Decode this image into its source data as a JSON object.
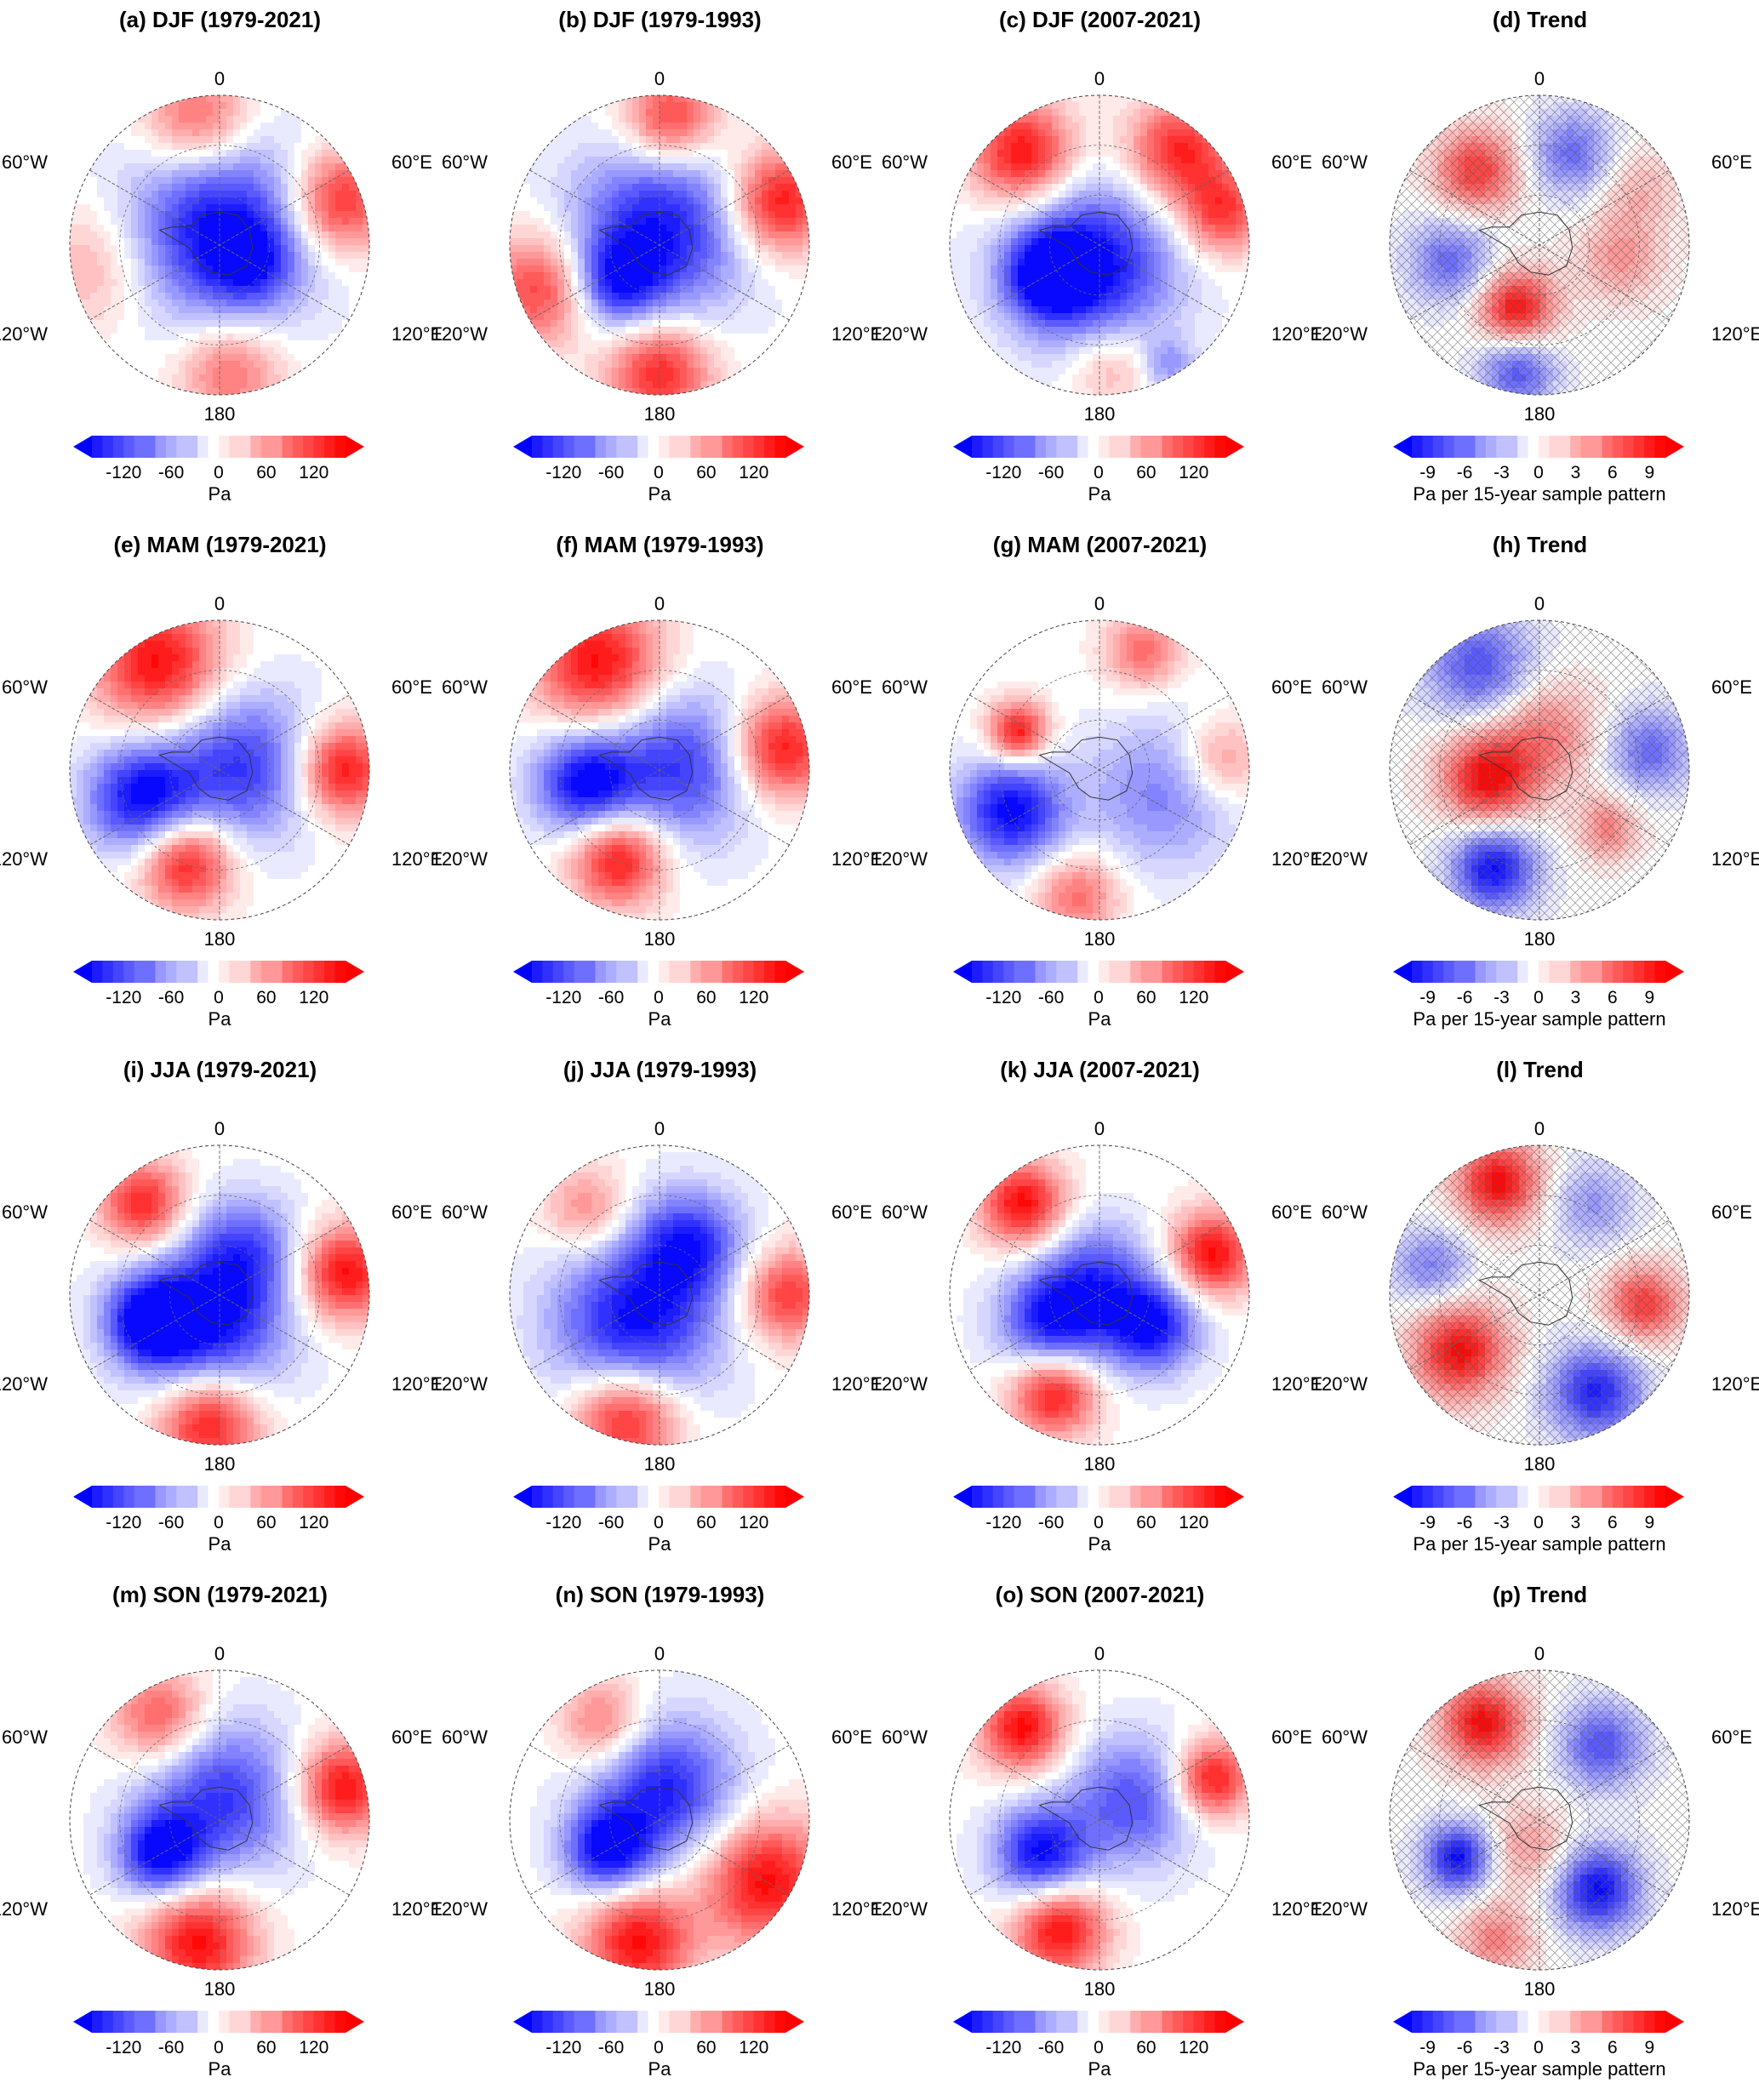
{
  "colors": {
    "neg_max": "#0000ff",
    "pos_max": "#ff0000",
    "neutral": "#ffffff",
    "coast": "#333333",
    "grid": "#666666"
  },
  "map_labels": {
    "top": "0",
    "left_upper": "60°W",
    "right_upper": "60°E",
    "left_lower": "120°W",
    "right_lower": "120°E",
    "bottom": "180"
  },
  "colorbars": {
    "mean": {
      "ticks": [
        "-120",
        "-60",
        "0",
        "60",
        "120"
      ],
      "unit": "Pa"
    },
    "trend": {
      "ticks": [
        "-9",
        "-6",
        "-3",
        "0",
        "3",
        "6",
        "9"
      ],
      "unit": "Pa per 15-year sample pattern"
    }
  },
  "panels": [
    {
      "title": "(a) DJF (1979-2021)",
      "kind": "mean",
      "blobs": [
        {
          "r": 0.1,
          "a": 0,
          "v": -1.0,
          "s": 0.42
        },
        {
          "r": 0.25,
          "a": 120,
          "v": -0.45,
          "s": 0.2
        },
        {
          "r": 0.85,
          "a": 70,
          "v": 0.9,
          "s": 0.24
        },
        {
          "r": 0.85,
          "a": -10,
          "v": 0.7,
          "s": 0.25
        },
        {
          "r": 0.85,
          "a": 175,
          "v": 0.6,
          "s": 0.24
        },
        {
          "r": 0.85,
          "a": 260,
          "v": 0.35,
          "s": 0.3
        }
      ]
    },
    {
      "title": "(b) DJF (1979-1993)",
      "kind": "mean",
      "blobs": [
        {
          "r": 0.1,
          "a": 0,
          "v": -0.95,
          "s": 0.4
        },
        {
          "r": 0.38,
          "a": 230,
          "v": -0.7,
          "s": 0.2
        },
        {
          "r": 0.85,
          "a": 70,
          "v": 1.0,
          "s": 0.24
        },
        {
          "r": 0.85,
          "a": 5,
          "v": 0.85,
          "s": 0.22
        },
        {
          "r": 0.85,
          "a": 180,
          "v": 0.9,
          "s": 0.24
        },
        {
          "r": 0.85,
          "a": 250,
          "v": 0.8,
          "s": 0.26
        }
      ]
    },
    {
      "title": "(c) DJF (2007-2021)",
      "kind": "mean",
      "blobs": [
        {
          "r": 0.15,
          "a": 200,
          "v": -1.0,
          "s": 0.38
        },
        {
          "r": 0.4,
          "a": 240,
          "v": -0.8,
          "s": 0.2
        },
        {
          "r": 0.8,
          "a": 320,
          "v": 1.0,
          "s": 0.24
        },
        {
          "r": 0.82,
          "a": 40,
          "v": 0.9,
          "s": 0.24
        },
        {
          "r": 0.85,
          "a": 75,
          "v": 0.8,
          "s": 0.2
        },
        {
          "r": 0.8,
          "a": 175,
          "v": 0.4,
          "s": 0.2
        },
        {
          "r": 0.92,
          "a": 150,
          "v": -0.4,
          "s": 0.12
        }
      ]
    },
    {
      "title": "(d) Trend",
      "kind": "trend",
      "hatch": true,
      "blobs": [
        {
          "r": 0.65,
          "a": 320,
          "v": 0.8,
          "s": 0.2
        },
        {
          "r": 0.65,
          "a": 20,
          "v": -0.6,
          "s": 0.2
        },
        {
          "r": 0.45,
          "a": 200,
          "v": 1.0,
          "s": 0.18
        },
        {
          "r": 0.85,
          "a": 190,
          "v": -0.7,
          "s": 0.18
        },
        {
          "r": 0.6,
          "a": 260,
          "v": -0.6,
          "s": 0.2
        },
        {
          "r": 0.55,
          "a": 100,
          "v": 0.4,
          "s": 0.2
        },
        {
          "r": 0.75,
          "a": 60,
          "v": 0.3,
          "s": 0.2
        }
      ]
    },
    {
      "title": "(e) MAM (1979-2021)",
      "kind": "mean",
      "blobs": [
        {
          "r": 0.15,
          "a": 80,
          "v": -0.8,
          "s": 0.35
        },
        {
          "r": 0.55,
          "a": 250,
          "v": -1.0,
          "s": 0.26
        },
        {
          "r": 0.82,
          "a": 330,
          "v": 1.0,
          "s": 0.3
        },
        {
          "r": 0.82,
          "a": 90,
          "v": 1.0,
          "s": 0.22
        },
        {
          "r": 0.65,
          "a": 200,
          "v": 1.0,
          "s": 0.22
        }
      ]
    },
    {
      "title": "(f) MAM (1979-1993)",
      "kind": "mean",
      "blobs": [
        {
          "r": 0.15,
          "a": 80,
          "v": -0.8,
          "s": 0.35
        },
        {
          "r": 0.5,
          "a": 260,
          "v": -1.0,
          "s": 0.24
        },
        {
          "r": 0.82,
          "a": 330,
          "v": 1.0,
          "s": 0.3
        },
        {
          "r": 0.82,
          "a": 80,
          "v": 1.0,
          "s": 0.24
        },
        {
          "r": 0.65,
          "a": 205,
          "v": 1.0,
          "s": 0.22
        }
      ]
    },
    {
      "title": "(g) MAM (2007-2021)",
      "kind": "mean",
      "blobs": [
        {
          "r": 0.65,
          "a": 245,
          "v": -1.0,
          "s": 0.25
        },
        {
          "r": 0.45,
          "a": 110,
          "v": -0.5,
          "s": 0.35
        },
        {
          "r": 0.6,
          "a": 295,
          "v": 1.0,
          "s": 0.14
        },
        {
          "r": 0.85,
          "a": 20,
          "v": 0.6,
          "s": 0.18
        },
        {
          "r": 0.82,
          "a": 85,
          "v": 0.5,
          "s": 0.2
        },
        {
          "r": 0.85,
          "a": 190,
          "v": 0.6,
          "s": 0.2
        }
      ]
    },
    {
      "title": "(h) Trend",
      "kind": "trend",
      "hatch": true,
      "blobs": [
        {
          "r": 0.35,
          "a": 260,
          "v": 1.0,
          "s": 0.22
        },
        {
          "r": 0.25,
          "a": 10,
          "v": 0.5,
          "s": 0.25
        },
        {
          "r": 0.8,
          "a": 330,
          "v": -0.7,
          "s": 0.25
        },
        {
          "r": 0.75,
          "a": 80,
          "v": -0.6,
          "s": 0.2
        },
        {
          "r": 0.72,
          "a": 205,
          "v": -1.0,
          "s": 0.2
        },
        {
          "r": 0.6,
          "a": 130,
          "v": 0.5,
          "s": 0.15
        }
      ]
    },
    {
      "title": "(i) JJA (1979-2021)",
      "kind": "mean",
      "blobs": [
        {
          "r": 0.2,
          "a": 200,
          "v": -1.0,
          "s": 0.35
        },
        {
          "r": 0.5,
          "a": 250,
          "v": -1.0,
          "s": 0.2
        },
        {
          "r": 0.35,
          "a": 30,
          "v": -0.6,
          "s": 0.25
        },
        {
          "r": 0.8,
          "a": 320,
          "v": 0.9,
          "s": 0.2
        },
        {
          "r": 0.85,
          "a": 80,
          "v": 1.0,
          "s": 0.22
        },
        {
          "r": 0.85,
          "a": 185,
          "v": 1.0,
          "s": 0.24
        }
      ]
    },
    {
      "title": "(j) JJA (1979-1993)",
      "kind": "mean",
      "blobs": [
        {
          "r": 0.25,
          "a": 220,
          "v": -1.0,
          "s": 0.38
        },
        {
          "r": 0.4,
          "a": 30,
          "v": -0.8,
          "s": 0.25
        },
        {
          "r": 0.85,
          "a": 195,
          "v": 1.0,
          "s": 0.25
        },
        {
          "r": 0.85,
          "a": 90,
          "v": 0.8,
          "s": 0.22
        },
        {
          "r": 0.75,
          "a": 320,
          "v": 0.5,
          "s": 0.2
        }
      ]
    },
    {
      "title": "(k) JJA (2007-2021)",
      "kind": "mean",
      "blobs": [
        {
          "r": 0.35,
          "a": 240,
          "v": -1.0,
          "s": 0.25
        },
        {
          "r": 0.4,
          "a": 120,
          "v": -1.0,
          "s": 0.22
        },
        {
          "r": 0.15,
          "a": 0,
          "v": -0.6,
          "s": 0.25
        },
        {
          "r": 0.8,
          "a": 320,
          "v": 1.0,
          "s": 0.2
        },
        {
          "r": 0.8,
          "a": 70,
          "v": 1.0,
          "s": 0.2
        },
        {
          "r": 0.72,
          "a": 205,
          "v": 1.0,
          "s": 0.2
        }
      ]
    },
    {
      "title": "(l) Trend",
      "kind": "trend",
      "hatch": true,
      "blobs": [
        {
          "r": 0.8,
          "a": 340,
          "v": 1.0,
          "s": 0.2
        },
        {
          "r": 0.65,
          "a": 235,
          "v": 1.0,
          "s": 0.22
        },
        {
          "r": 0.7,
          "a": 95,
          "v": 0.8,
          "s": 0.18
        },
        {
          "r": 0.75,
          "a": 150,
          "v": -0.9,
          "s": 0.22
        },
        {
          "r": 0.75,
          "a": 285,
          "v": -0.5,
          "s": 0.18
        },
        {
          "r": 0.7,
          "a": 30,
          "v": -0.4,
          "s": 0.2
        }
      ]
    },
    {
      "title": "(m) SON (1979-2021)",
      "kind": "mean",
      "blobs": [
        {
          "r": 0.15,
          "a": 10,
          "v": -0.8,
          "s": 0.35
        },
        {
          "r": 0.45,
          "a": 240,
          "v": -1.0,
          "s": 0.2
        },
        {
          "r": 0.85,
          "a": 75,
          "v": 1.0,
          "s": 0.22
        },
        {
          "r": 0.82,
          "a": 190,
          "v": 1.0,
          "s": 0.26
        },
        {
          "r": 0.8,
          "a": 330,
          "v": 0.7,
          "s": 0.22
        }
      ]
    },
    {
      "title": "(n) SON (1979-1993)",
      "kind": "mean",
      "blobs": [
        {
          "r": 0.2,
          "a": 10,
          "v": -0.9,
          "s": 0.33
        },
        {
          "r": 0.4,
          "a": 240,
          "v": -1.0,
          "s": 0.2
        },
        {
          "r": 0.82,
          "a": 120,
          "v": 1.0,
          "s": 0.3
        },
        {
          "r": 0.82,
          "a": 190,
          "v": 1.0,
          "s": 0.25
        },
        {
          "r": 0.75,
          "a": 330,
          "v": 0.6,
          "s": 0.2
        }
      ]
    },
    {
      "title": "(o) SON (2007-2021)",
      "kind": "mean",
      "blobs": [
        {
          "r": 0.45,
          "a": 240,
          "v": -1.0,
          "s": 0.22
        },
        {
          "r": 0.25,
          "a": 60,
          "v": -0.7,
          "s": 0.3
        },
        {
          "r": 0.8,
          "a": 320,
          "v": 1.0,
          "s": 0.2
        },
        {
          "r": 0.8,
          "a": 70,
          "v": 1.0,
          "s": 0.18
        },
        {
          "r": 0.78,
          "a": 200,
          "v": 1.0,
          "s": 0.22
        }
      ]
    },
    {
      "title": "(p) Trend",
      "kind": "trend",
      "hatch": true,
      "blobs": [
        {
          "r": 0.75,
          "a": 330,
          "v": 1.0,
          "s": 0.2
        },
        {
          "r": 0.65,
          "a": 40,
          "v": -0.7,
          "s": 0.2
        },
        {
          "r": 0.6,
          "a": 245,
          "v": -1.0,
          "s": 0.16
        },
        {
          "r": 0.6,
          "a": 140,
          "v": -1.0,
          "s": 0.2
        },
        {
          "r": 0.2,
          "a": 200,
          "v": 0.4,
          "s": 0.2
        },
        {
          "r": 0.85,
          "a": 200,
          "v": 0.5,
          "s": 0.18
        }
      ]
    }
  ]
}
